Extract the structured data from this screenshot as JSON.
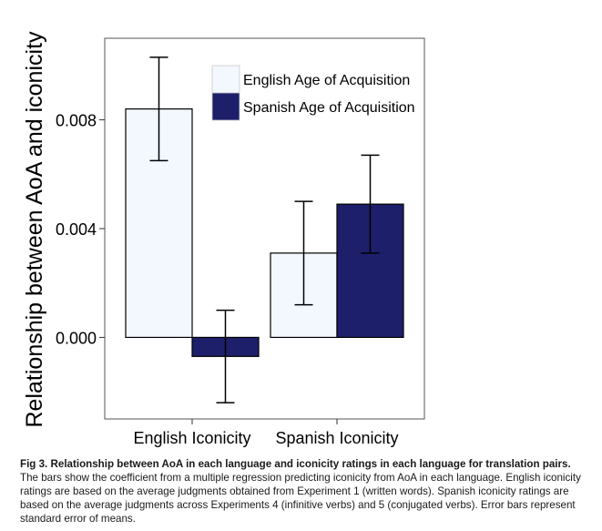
{
  "chart_data": {
    "type": "bar",
    "categories": [
      "English Iconicity",
      "Spanish Iconicity"
    ],
    "series": [
      {
        "name": "English Age of Acquisition",
        "color": "#f3f8ff",
        "values": [
          0.0084,
          0.0031
        ],
        "errors": [
          0.0019,
          0.0019
        ]
      },
      {
        "name": "Spanish Age of Acquisition",
        "color": "#1e1f6b",
        "values": [
          -0.0007,
          0.0049
        ],
        "errors": [
          0.0017,
          0.0018
        ]
      }
    ],
    "ylabel": "Relationship between AoA and iconicity",
    "xlabel": "",
    "ylim": [
      -0.003,
      0.011
    ],
    "yticks": [
      "0.000",
      "0.004",
      "0.008"
    ],
    "ytick_values": [
      0.0,
      0.004,
      0.008
    ],
    "legend_position": "top-right",
    "grid": false
  },
  "caption": {
    "lead": "Fig 3. Relationship between AoA in each language and iconicity ratings in each language for translation pairs.",
    "body": " The bars show the coefficient from a multiple regression predicting iconicity from AoA in each language. English iconicity ratings are based on the average judgments obtained from Experiment 1 (written words). Spanish iconicity ratings are based on the average judgments across Experiments 4 (infinitive verbs) and 5 (conjugated verbs). Error bars represent standard error of means."
  }
}
